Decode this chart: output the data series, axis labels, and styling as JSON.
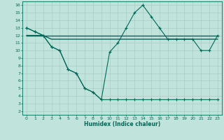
{
  "xlabel": "Humidex (Indice chaleur)",
  "bg_color": "#c0e4dc",
  "grid_color": "#a8ccc4",
  "line_color": "#006858",
  "xlim": [
    -0.5,
    23.5
  ],
  "ylim": [
    1.5,
    16.5
  ],
  "xticks": [
    0,
    1,
    2,
    3,
    4,
    5,
    6,
    7,
    8,
    9,
    10,
    11,
    12,
    13,
    14,
    15,
    16,
    17,
    18,
    19,
    20,
    21,
    22,
    23
  ],
  "yticks": [
    2,
    3,
    4,
    5,
    6,
    7,
    8,
    9,
    10,
    11,
    12,
    13,
    14,
    15,
    16
  ],
  "line1_x": [
    0,
    1,
    2,
    3,
    4,
    5,
    6,
    7,
    8,
    9,
    10,
    11,
    12,
    13,
    14,
    15,
    16,
    17,
    18,
    19,
    20,
    21,
    22,
    23
  ],
  "line1_y": [
    13,
    12.5,
    12,
    10.5,
    10,
    7.5,
    7,
    5,
    4.5,
    3.5,
    3.5,
    3.5,
    3.5,
    3.5,
    3.5,
    3.5,
    3.5,
    3.5,
    3.5,
    3.5,
    3.5,
    3.5,
    3.5,
    3.5
  ],
  "line2_x": [
    0,
    1,
    2,
    3,
    4,
    5,
    6,
    7,
    8,
    9,
    10,
    11,
    12,
    13,
    14,
    15,
    16,
    17,
    18,
    19,
    20,
    21,
    22,
    23
  ],
  "line2_y": [
    13,
    12.5,
    12,
    10.5,
    10,
    7.5,
    7,
    5,
    4.5,
    3.5,
    9.8,
    11.0,
    13.0,
    15.0,
    16.0,
    14.5,
    13.0,
    11.5,
    11.5,
    11.5,
    11.5,
    10.0,
    10.0,
    12.0
  ],
  "line3_x": [
    0,
    1,
    2,
    3,
    4,
    5,
    6,
    7,
    8,
    9,
    10,
    11,
    12,
    13,
    14,
    15,
    16,
    17,
    18,
    19,
    20,
    21,
    22,
    23
  ],
  "line3_y": [
    12.0,
    12.0,
    12.0,
    12.0,
    12.0,
    12.0,
    12.0,
    12.0,
    12.0,
    12.0,
    12.0,
    12.0,
    12.0,
    12.0,
    12.0,
    12.0,
    12.0,
    12.0,
    12.0,
    12.0,
    12.0,
    12.0,
    12.0,
    12.0
  ],
  "line4_x": [
    0,
    1,
    2,
    3,
    4,
    5,
    6,
    7,
    8,
    9,
    10,
    11,
    12,
    13,
    14,
    15,
    16,
    17,
    18,
    19,
    20,
    21,
    22,
    23
  ],
  "line4_y": [
    12.0,
    12.0,
    12.0,
    11.5,
    11.5,
    11.5,
    11.5,
    11.5,
    11.5,
    11.5,
    11.5,
    11.5,
    11.5,
    11.5,
    11.5,
    11.5,
    11.5,
    11.5,
    11.5,
    11.5,
    11.5,
    11.5,
    11.5,
    11.5
  ]
}
